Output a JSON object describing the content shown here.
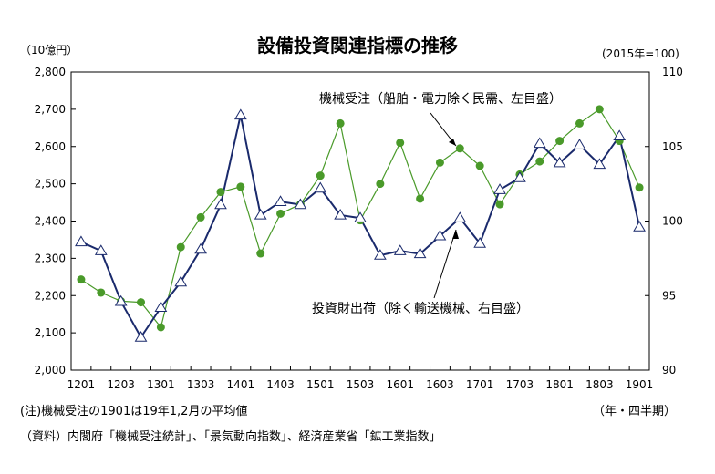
{
  "chart_data": {
    "type": "line",
    "title": "設備投資関連指標の推移",
    "left_axis_unit": "（10億円）",
    "right_axis_unit": "(2015年=100)",
    "period_unit": "（年・四半期）",
    "note": "(注)機械受注の1901は19年1,2月の平均値",
    "source": "（資料）内閣府「機械受注統計」、「景気動向指数」、経済産業省「鉱工業指数」",
    "x": [
      "1201",
      "1202",
      "1203",
      "1204",
      "1301",
      "1302",
      "1303",
      "1304",
      "1401",
      "1402",
      "1403",
      "1404",
      "1501",
      "1502",
      "1503",
      "1504",
      "1601",
      "1602",
      "1603",
      "1604",
      "1701",
      "1702",
      "1703",
      "1704",
      "1801",
      "1802",
      "1803",
      "1804",
      "1901"
    ],
    "x_tick_labels": [
      "1201",
      "1203",
      "1301",
      "1303",
      "1401",
      "1403",
      "1501",
      "1503",
      "1601",
      "1603",
      "1701",
      "1703",
      "1801",
      "1803",
      "1901"
    ],
    "y_left": {
      "min": 2000,
      "max": 2800,
      "ticks": [
        "2,000",
        "2,100",
        "2,200",
        "2,300",
        "2,400",
        "2,500",
        "2,600",
        "2,700",
        "2,800"
      ]
    },
    "y_right": {
      "min": 90,
      "max": 110,
      "ticks": [
        "90",
        "95",
        "100",
        "105",
        "110"
      ]
    },
    "grid": false,
    "series": [
      {
        "name": "機械受注（船舶・電力除く民需、左目盛）",
        "axis": "left",
        "color": "#4a9a2a",
        "marker": "circle",
        "values": [
          2243,
          2208,
          2185,
          2182,
          2115,
          2330,
          2410,
          2478,
          2492,
          2313,
          2420,
          2445,
          2522,
          2662,
          2402,
          2500,
          2610,
          2460,
          2557,
          2595,
          2548,
          2445,
          2525,
          2560,
          2615,
          2662,
          2700,
          2615,
          2490
        ]
      },
      {
        "name": "投資財出荷（除く輸送機械、右目盛）",
        "axis": "right",
        "color": "#1a2a6c",
        "marker": "triangle",
        "values": [
          98.6,
          98.0,
          94.6,
          92.2,
          94.2,
          95.9,
          98.1,
          101.1,
          107.1,
          100.4,
          101.3,
          101.1,
          102.2,
          100.4,
          100.2,
          97.7,
          98.0,
          97.8,
          99.0,
          100.2,
          98.5,
          102.1,
          102.9,
          105.2,
          103.9,
          105.1,
          103.8,
          105.7,
          99.6
        ]
      }
    ],
    "annotations": [
      {
        "text": "機械受注（船舶・電力除く民需、左目盛）",
        "series": 0
      },
      {
        "text": "投資財出荷（除く輸送機械、右目盛）",
        "series": 1
      }
    ]
  }
}
